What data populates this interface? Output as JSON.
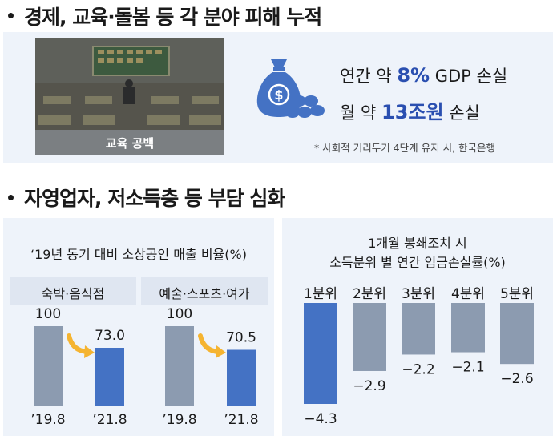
{
  "section1": {
    "heading": "경제, 교육·돌봄 등 각 분야 피해 누적",
    "photo_caption": "교육 공백",
    "loss_line1_prefix": "연간 약 ",
    "loss_line1_value": "8%",
    "loss_line1_suffix": " GDP 손실",
    "loss_line2_prefix": "월 약 ",
    "loss_line2_value": "13조원",
    "loss_line2_suffix": " 손실",
    "footnote": "* 사회적 거리두기 4단계 유지 시, 한국은행",
    "money_icon": "money-bag-icon"
  },
  "section2": {
    "heading": "자영업자, 저소득층 등 부담 심화"
  },
  "colors": {
    "accent_blue": "#4472c4",
    "bar_gray": "#8c9bb0",
    "panel_bg": "#eef3fa",
    "arrow": "#f5b431"
  },
  "chart_data": [
    {
      "type": "bar",
      "title": "‘19년 동기 대비 소상공인 매출 비율(%)",
      "panels": [
        {
          "name": "숙박·음식점",
          "categories": [
            "’19.8",
            "’21.8"
          ],
          "values": [
            100,
            73.0
          ],
          "value_labels": [
            "100",
            "73.0"
          ]
        },
        {
          "name": "예술·스포츠·여가",
          "categories": [
            "’19.8",
            "’21.8"
          ],
          "values": [
            100,
            70.5
          ],
          "value_labels": [
            "100",
            "70.5"
          ]
        }
      ]
    },
    {
      "type": "bar",
      "title_line1": "1개월 봉쇄조치 시",
      "title_line2": "소득분위 별 연간 임금손실률(%)",
      "categories": [
        "1분위",
        "2분위",
        "3분위",
        "4분위",
        "5분위"
      ],
      "values": [
        -4.3,
        -2.9,
        -2.2,
        -2.1,
        -2.6
      ],
      "value_labels": [
        "−4.3",
        "−2.9",
        "−2.2",
        "−2.1",
        "−2.6"
      ]
    }
  ]
}
